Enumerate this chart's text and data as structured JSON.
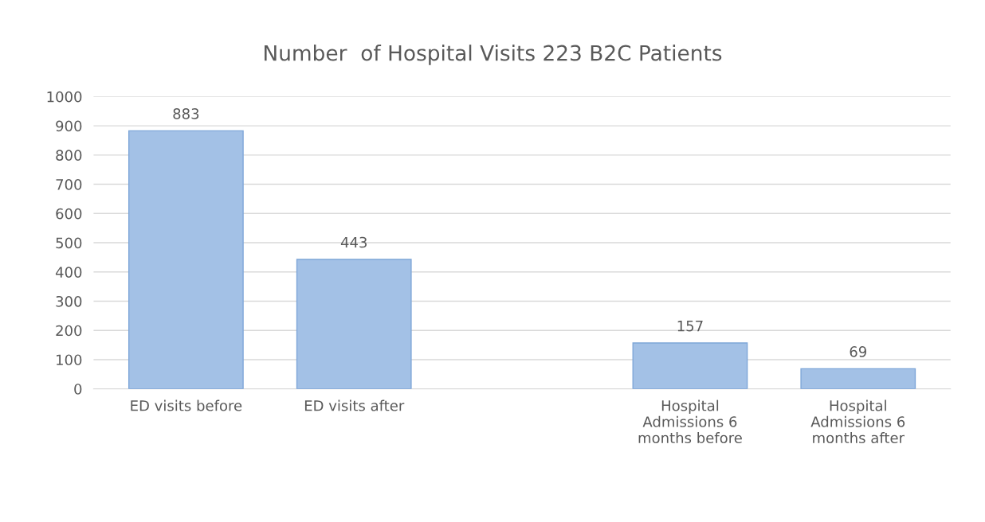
{
  "chart_data": {
    "type": "bar",
    "title": "Number  of Hospital Visits 223 B2C Patients",
    "categories": [
      "ED visits before",
      "ED visits after",
      null,
      "Hospital\nAdmissions 6\nmonths before",
      "Hospital\nAdmissions 6\nmonths after"
    ],
    "values": [
      883,
      443,
      null,
      157,
      69
    ],
    "color": "#a3c1e6",
    "ylim": [
      0,
      1000
    ],
    "yticks": [
      0,
      100,
      200,
      300,
      400,
      500,
      600,
      700,
      800,
      900,
      1000
    ],
    "grid": "y",
    "data_labels": true
  }
}
